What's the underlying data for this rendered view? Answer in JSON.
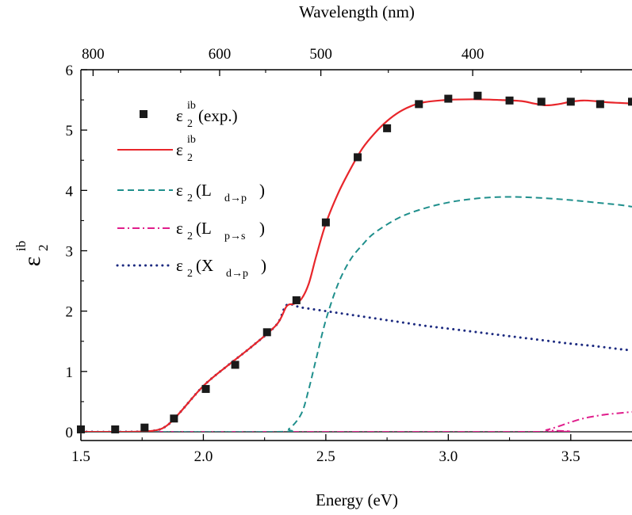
{
  "chart_data": {
    "type": "line",
    "xlabel": "Energy (eV)",
    "ylabel": "ε",
    "ylabel_sub": "2",
    "ylabel_sup": "ib",
    "top_axis_label": "Wavelength (nm)",
    "xlim": [
      1.5,
      3.75
    ],
    "ylim": [
      0,
      6
    ],
    "x_ticks": [
      1.5,
      2.0,
      2.5,
      3.0,
      3.5
    ],
    "x_tick_labels": [
      "1.5",
      "2.0",
      "2.5",
      "3.0",
      "3.5"
    ],
    "y_ticks": [
      0,
      1,
      2,
      3,
      4,
      5,
      6
    ],
    "y_tick_labels": [
      "0",
      "1",
      "2",
      "3",
      "4",
      "5",
      "6"
    ],
    "top_ticks_nm": [
      800,
      600,
      500,
      400
    ],
    "top_tick_labels": [
      "800",
      "600",
      "500",
      "400"
    ],
    "grid": false,
    "legend_position": "top-left",
    "legend": [
      {
        "id": "exp",
        "main": "ε",
        "sub": "2",
        "sup": "ib",
        "tail": " (exp.)"
      },
      {
        "id": "fit",
        "main": "ε",
        "sub": "2",
        "sup": "ib",
        "tail": ""
      },
      {
        "id": "ldp",
        "main": "ε",
        "sub": "2",
        "tail": " (L",
        "sub2": "d→p",
        "close": ")"
      },
      {
        "id": "lps",
        "main": "ε",
        "sub": "2",
        "tail": " (L",
        "sub2": "p→s",
        "close": ")"
      },
      {
        "id": "xdp",
        "main": "ε",
        "sub": "2",
        "tail": " (X",
        "sub2": "d→p",
        "close": ")"
      }
    ],
    "series": [
      {
        "id": "exp",
        "kind": "markers",
        "color": "#1a1a1a",
        "x": [
          1.5,
          1.64,
          1.76,
          1.88,
          2.01,
          2.13,
          2.26,
          2.38,
          2.5,
          2.63,
          2.75,
          2.88,
          3.0,
          3.12,
          3.25,
          3.38,
          3.5,
          3.62,
          3.75
        ],
        "y": [
          0.04,
          0.04,
          0.07,
          0.22,
          0.71,
          1.11,
          1.65,
          2.18,
          3.47,
          4.55,
          5.03,
          5.43,
          5.52,
          5.57,
          5.49,
          5.47,
          5.47,
          5.43,
          5.47
        ]
      },
      {
        "id": "fit",
        "kind": "solid",
        "color": "#e8262b",
        "x": [
          1.5,
          1.7,
          1.8,
          1.85,
          1.9,
          2.0,
          2.1,
          2.2,
          2.3,
          2.34,
          2.37,
          2.4,
          2.43,
          2.46,
          2.5,
          2.55,
          2.6,
          2.65,
          2.7,
          2.75,
          2.8,
          2.85,
          2.9,
          3.0,
          3.1,
          3.2,
          3.3,
          3.35,
          3.4,
          3.45,
          3.5,
          3.55,
          3.6,
          3.65,
          3.7,
          3.75
        ],
        "y": [
          0.0,
          0.0,
          0.02,
          0.1,
          0.3,
          0.76,
          1.1,
          1.42,
          1.78,
          2.08,
          2.12,
          2.2,
          2.45,
          2.9,
          3.45,
          3.95,
          4.35,
          4.7,
          4.95,
          5.15,
          5.3,
          5.4,
          5.46,
          5.5,
          5.51,
          5.5,
          5.48,
          5.44,
          5.41,
          5.43,
          5.47,
          5.49,
          5.48,
          5.46,
          5.45,
          5.44
        ]
      },
      {
        "id": "ldp",
        "kind": "dashed",
        "color": "#1f8f8c",
        "x": [
          1.5,
          2.3,
          2.35,
          2.4,
          2.43,
          2.46,
          2.5,
          2.55,
          2.6,
          2.65,
          2.7,
          2.8,
          2.9,
          3.0,
          3.1,
          3.2,
          3.3,
          3.4,
          3.5,
          3.6,
          3.7,
          3.75
        ],
        "y": [
          0.0,
          0.0,
          0.05,
          0.3,
          0.7,
          1.2,
          1.85,
          2.45,
          2.85,
          3.1,
          3.3,
          3.55,
          3.7,
          3.8,
          3.86,
          3.89,
          3.89,
          3.87,
          3.84,
          3.8,
          3.76,
          3.73
        ]
      },
      {
        "id": "lps",
        "kind": "dashdot",
        "color": "#e01e8c",
        "x": [
          1.5,
          3.35,
          3.4,
          3.45,
          3.5,
          3.55,
          3.6,
          3.65,
          3.7,
          3.75
        ],
        "y": [
          0.0,
          0.0,
          0.03,
          0.09,
          0.16,
          0.22,
          0.26,
          0.29,
          0.31,
          0.33
        ]
      },
      {
        "id": "xdp",
        "kind": "dotted",
        "color": "#1c2a80",
        "x": [
          1.5,
          1.7,
          1.8,
          1.85,
          1.9,
          2.0,
          2.1,
          2.2,
          2.3,
          2.34,
          2.4,
          2.5,
          2.6,
          2.7,
          2.8,
          2.9,
          3.0,
          3.1,
          3.2,
          3.3,
          3.4,
          3.5,
          3.6,
          3.7,
          3.75
        ],
        "y": [
          0.0,
          0.0,
          0.02,
          0.1,
          0.3,
          0.76,
          1.1,
          1.42,
          1.78,
          2.1,
          2.06,
          2.0,
          1.94,
          1.88,
          1.82,
          1.76,
          1.71,
          1.66,
          1.61,
          1.56,
          1.51,
          1.46,
          1.42,
          1.37,
          1.35
        ]
      }
    ]
  }
}
